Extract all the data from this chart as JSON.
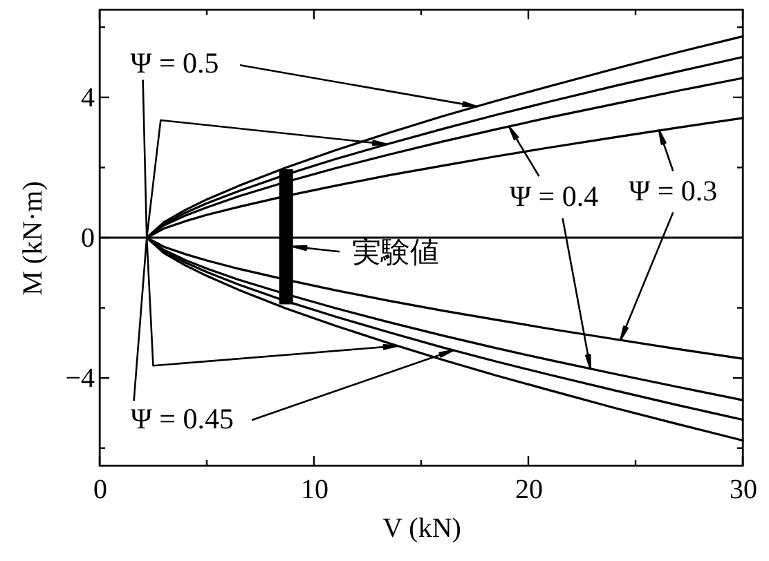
{
  "chart_data": {
    "type": "line",
    "xlabel": "V (kN)",
    "ylabel": "M (kN·m)",
    "xlim": [
      0,
      30
    ],
    "ylim": [
      -6.5,
      6.5
    ],
    "xticks": [
      0,
      {
        "value": 5,
        "label": null
      },
      10,
      {
        "value": 15,
        "label": null
      },
      20,
      {
        "value": 25,
        "label": null
      },
      30
    ],
    "yticks": [
      {
        "value": -6,
        "label": null
      },
      -4,
      {
        "value": -2,
        "label": null
      },
      0,
      {
        "value": 2,
        "label": null
      },
      4,
      {
        "value": 6,
        "label": null
      }
    ],
    "ref_lines": [
      {
        "axis": "y",
        "value": 0
      }
    ],
    "annotations": [
      {
        "text": "Ψ = 0.5",
        "x": 17.6,
        "y": 3.74
      },
      {
        "text": "Ψ = 0.45",
        "x": 16.5,
        "y": -3.21
      },
      {
        "text": "Ψ = 0.4",
        "x": 19.1,
        "y": 3.17
      },
      {
        "text": "Ψ = 0.3",
        "x": 26.1,
        "y": 3.06
      },
      {
        "text": "実験値",
        "x": 9.0,
        "y": -0.25
      }
    ],
    "series": [
      {
        "color": "#000000",
        "x": [
          30,
          27,
          24,
          21,
          18.5,
          16,
          13.5,
          11,
          8.7,
          6.5,
          5,
          4,
          3,
          2.2,
          3,
          4,
          5,
          6.5,
          8.7,
          11,
          13.5,
          16,
          18.5,
          21,
          24,
          27,
          30
        ],
        "values": [
          -5.78,
          -5.32,
          -4.85,
          -4.35,
          -3.93,
          -3.48,
          -3.01,
          -2.51,
          -2.02,
          -1.49,
          -1.09,
          -0.79,
          -0.44,
          0,
          0.44,
          0.79,
          1.09,
          1.48,
          2.0,
          2.49,
          2.99,
          3.46,
          3.9,
          4.32,
          4.81,
          5.29,
          5.74
        ]
      },
      {
        "color": "#000000",
        "x": [
          30,
          27,
          24,
          21,
          18.5,
          16,
          13.5,
          11,
          8.7,
          6.5,
          5,
          4,
          3,
          2.2,
          3,
          4,
          5,
          6.5,
          8.7,
          11,
          13.5,
          16,
          18.5,
          21,
          24,
          27,
          30
        ],
        "values": [
          -5.19,
          -4.78,
          -4.35,
          -3.91,
          -3.53,
          -3.13,
          -2.7,
          -2.25,
          -1.81,
          -1.34,
          -0.98,
          -0.71,
          -0.4,
          0,
          0.39,
          0.71,
          0.98,
          1.33,
          1.8,
          2.24,
          2.68,
          3.1,
          3.5,
          3.88,
          4.32,
          4.74,
          5.15
        ]
      },
      {
        "color": "#000000",
        "x": [
          30,
          27,
          24,
          21,
          18.5,
          16,
          13.5,
          11,
          8.7,
          6.5,
          5,
          4,
          3,
          2.2,
          3,
          4,
          5,
          6.5,
          8.7,
          11,
          13.5,
          16,
          18.5,
          21,
          24,
          27,
          30
        ],
        "values": [
          -4.63,
          -4.26,
          -3.88,
          -3.49,
          -3.15,
          -2.79,
          -2.41,
          -2.01,
          -1.61,
          -1.2,
          -0.88,
          -0.64,
          -0.35,
          0,
          0.35,
          0.63,
          0.86,
          1.18,
          1.59,
          1.98,
          2.37,
          2.74,
          3.09,
          3.43,
          3.81,
          4.19,
          4.55
        ]
      },
      {
        "color": "#000000",
        "x": [
          30,
          27,
          24,
          21,
          18.5,
          16,
          13.5,
          11,
          8.7,
          6.5,
          5,
          4,
          3,
          2.2,
          3,
          4,
          5,
          6.5,
          8.7,
          11,
          13.5,
          16,
          18.5,
          21,
          24,
          27,
          30
        ],
        "values": [
          -3.45,
          -3.18,
          -2.89,
          -2.6,
          -2.34,
          -2.08,
          -1.8,
          -1.5,
          -1.2,
          -0.89,
          -0.65,
          -0.47,
          -0.26,
          0,
          0.26,
          0.47,
          0.65,
          0.88,
          1.19,
          1.48,
          1.78,
          2.05,
          2.32,
          2.57,
          2.86,
          3.14,
          3.41
        ]
      },
      {
        "type": "bar",
        "color": "#000000",
        "x": [
          8.7
        ],
        "base": [
          -1.9
        ],
        "values": [
          3.85
        ]
      }
    ]
  }
}
